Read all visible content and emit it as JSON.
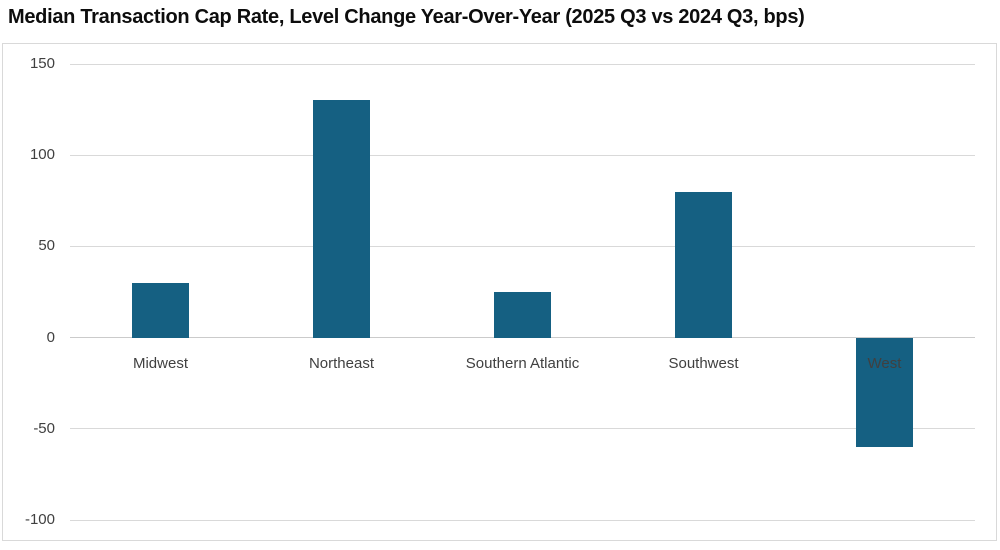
{
  "chart_data": {
    "type": "bar",
    "title": "Median Transaction Cap Rate, Level Change Year-Over-Year (2025 Q3 vs 2024 Q3, bps)",
    "categories": [
      "Midwest",
      "Northeast",
      "Southern Atlantic",
      "Southwest",
      "West"
    ],
    "values": [
      30,
      130,
      25,
      80,
      -60
    ],
    "xlabel": "",
    "ylabel": "",
    "ylim": [
      -100,
      150
    ],
    "ytick_step": 50,
    "yticks": [
      150,
      100,
      50,
      0,
      -50,
      -100
    ],
    "grid": true,
    "legend": false,
    "colors": {
      "bar": "#156082",
      "gridline": "#D9D9D9",
      "zero_axis_line": "#CBCBCB",
      "tick_label": "#404040",
      "category_label": "#404040",
      "title": "#0D0D0D",
      "frame_border": "#D9D9D9",
      "background": "#FFFFFF"
    }
  }
}
